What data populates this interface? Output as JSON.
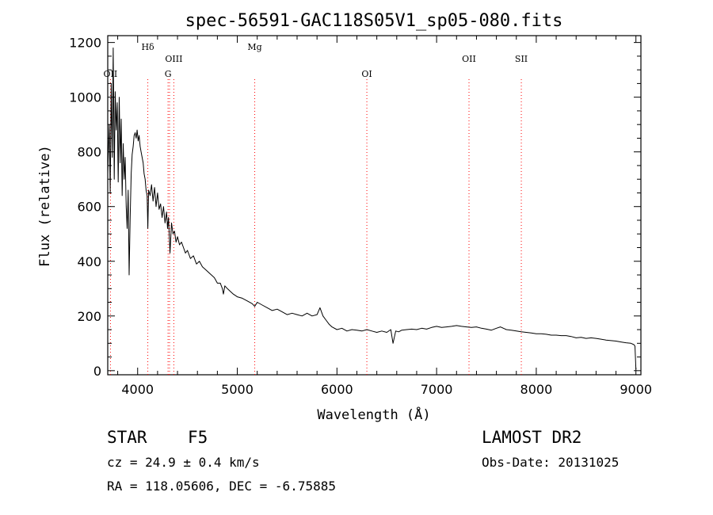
{
  "chart_data": {
    "type": "line",
    "title": "spec-56591-GAC118S05V1_sp05-080.fits",
    "xlabel": "Wavelength (Å)",
    "ylabel": "Flux (relative)",
    "xlim": [
      3700,
      9050
    ],
    "ylim": [
      -15,
      1225
    ],
    "xticks": [
      4000,
      5000,
      6000,
      7000,
      8000,
      9000
    ],
    "yticks": [
      0,
      200,
      400,
      600,
      800,
      1000,
      1200
    ],
    "line_color": "#000000",
    "marker_color": "#ff0000",
    "lines": [
      {
        "label": "OII",
        "wavelength": 3727,
        "tier": 3
      },
      {
        "label": "Hδ",
        "wavelength": 4102,
        "tier": 1
      },
      {
        "label": "OIII",
        "wavelength": 4363,
        "tier": 2
      },
      {
        "label": "G",
        "wavelength": 4305,
        "tier": 3
      },
      {
        "label": "Mg",
        "wavelength": 5175,
        "tier": 1
      },
      {
        "label": "OI",
        "wavelength": 6300,
        "tier": 3
      },
      {
        "label": "OII",
        "wavelength": 7325,
        "tier": 2
      },
      {
        "label": "SII",
        "wavelength": 7850,
        "tier": 2
      }
    ],
    "extra_markers": [
      4320
    ],
    "series": [
      {
        "name": "flux",
        "x": [
          3700,
          3715,
          3725,
          3735,
          3745,
          3755,
          3765,
          3775,
          3785,
          3795,
          3805,
          3815,
          3825,
          3835,
          3845,
          3855,
          3865,
          3875,
          3885,
          3895,
          3905,
          3915,
          3925,
          3935,
          3945,
          3955,
          3965,
          3975,
          3985,
          3995,
          4005,
          4015,
          4025,
          4035,
          4045,
          4055,
          4065,
          4075,
          4085,
          4095,
          4102,
          4110,
          4125,
          4140,
          4155,
          4170,
          4185,
          4200,
          4215,
          4230,
          4245,
          4260,
          4275,
          4290,
          4300,
          4310,
          4325,
          4340,
          4355,
          4370,
          4385,
          4400,
          4420,
          4440,
          4460,
          4480,
          4500,
          4530,
          4560,
          4590,
          4620,
          4650,
          4680,
          4710,
          4740,
          4770,
          4800,
          4830,
          4850,
          4861,
          4875,
          4900,
          4930,
          4960,
          5000,
          5050,
          5100,
          5150,
          5175,
          5200,
          5250,
          5300,
          5350,
          5400,
          5450,
          5500,
          5550,
          5600,
          5650,
          5700,
          5750,
          5800,
          5830,
          5860,
          5890,
          5920,
          5950,
          6000,
          6050,
          6100,
          6150,
          6200,
          6250,
          6300,
          6350,
          6400,
          6450,
          6500,
          6540,
          6563,
          6590,
          6620,
          6650,
          6700,
          6750,
          6800,
          6850,
          6900,
          6950,
          7000,
          7050,
          7100,
          7150,
          7200,
          7250,
          7300,
          7350,
          7400,
          7450,
          7500,
          7550,
          7600,
          7640,
          7700,
          7750,
          7800,
          7850,
          7900,
          7950,
          8000,
          8050,
          8100,
          8150,
          8200,
          8250,
          8300,
          8350,
          8400,
          8450,
          8500,
          8550,
          8600,
          8650,
          8700,
          8750,
          8800,
          8850,
          8900,
          8950,
          8980,
          8990,
          9000
        ],
        "y": [
          720,
          900,
          650,
          1050,
          780,
          1180,
          700,
          1020,
          880,
          980,
          690,
          1000,
          760,
          920,
          640,
          830,
          700,
          780,
          600,
          520,
          660,
          350,
          560,
          720,
          790,
          820,
          860,
          870,
          850,
          880,
          840,
          860,
          820,
          800,
          780,
          760,
          720,
          700,
          660,
          640,
          520,
          660,
          640,
          680,
          620,
          670,
          600,
          650,
          590,
          610,
          560,
          600,
          540,
          580,
          520,
          560,
          430,
          540,
          500,
          510,
          470,
          490,
          460,
          470,
          450,
          430,
          440,
          410,
          420,
          390,
          400,
          380,
          370,
          360,
          350,
          340,
          320,
          320,
          300,
          280,
          310,
          300,
          290,
          280,
          270,
          265,
          255,
          245,
          235,
          250,
          240,
          230,
          220,
          225,
          215,
          205,
          210,
          205,
          200,
          210,
          200,
          205,
          230,
          200,
          185,
          170,
          160,
          150,
          155,
          145,
          150,
          148,
          145,
          150,
          145,
          140,
          145,
          140,
          150,
          100,
          145,
          142,
          148,
          150,
          152,
          150,
          155,
          152,
          158,
          162,
          158,
          160,
          162,
          165,
          162,
          160,
          158,
          160,
          155,
          152,
          148,
          155,
          160,
          150,
          148,
          145,
          142,
          140,
          138,
          135,
          135,
          133,
          130,
          130,
          128,
          128,
          125,
          120,
          122,
          118,
          120,
          118,
          115,
          112,
          110,
          108,
          105,
          102,
          100,
          95,
          90,
          5
        ]
      }
    ]
  },
  "footer": {
    "object_class": "STAR",
    "subclass": "F5",
    "survey": "LAMOST DR2",
    "velocity": "cz = 24.9 ± 0.4 km/s",
    "obs_date": "Obs-Date: 20131025",
    "coords": "RA = 118.05606, DEC =  -6.75885"
  }
}
